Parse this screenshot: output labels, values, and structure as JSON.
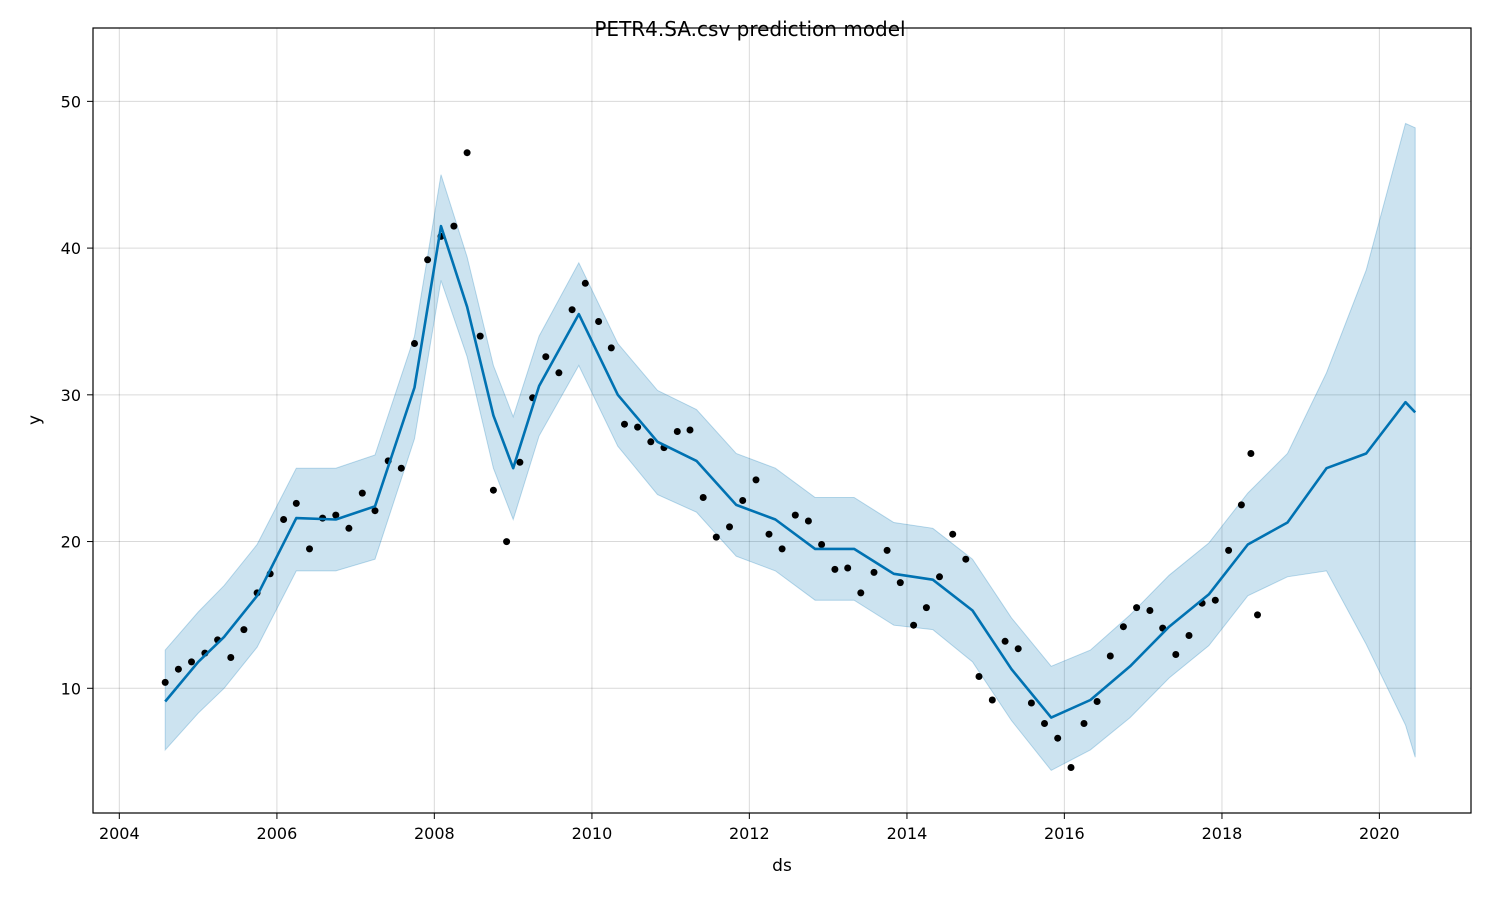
{
  "chart_data": {
    "type": "scatter",
    "title": "PETR4.SA.csv prediction model",
    "xlabel": "ds",
    "ylabel": "y",
    "x_axis_type": "date",
    "xlim": [
      "2003-09-01",
      "2021-03-01"
    ],
    "ylim": [
      1.5,
      55
    ],
    "x_ticks": [
      "2004",
      "2006",
      "2008",
      "2010",
      "2012",
      "2014",
      "2016",
      "2018",
      "2020"
    ],
    "y_ticks": [
      10,
      20,
      30,
      40,
      50
    ],
    "grid": true,
    "legend": "none",
    "colors": {
      "observed": "#000000",
      "forecast_line": "#0072B2",
      "uncertainty_band": "#0072B2"
    },
    "series": [
      {
        "kind": "observed",
        "points": [
          [
            "2004-08-01",
            10.4
          ],
          [
            "2004-10-01",
            11.3
          ],
          [
            "2004-12-01",
            11.8
          ],
          [
            "2005-02-01",
            12.4
          ],
          [
            "2005-04-01",
            13.3
          ],
          [
            "2005-06-01",
            12.1
          ],
          [
            "2005-08-01",
            14.0
          ],
          [
            "2005-10-01",
            16.5
          ],
          [
            "2005-12-01",
            17.8
          ],
          [
            "2006-02-01",
            21.5
          ],
          [
            "2006-04-01",
            22.6
          ],
          [
            "2006-06-01",
            19.5
          ],
          [
            "2006-08-01",
            21.6
          ],
          [
            "2006-10-01",
            21.8
          ],
          [
            "2006-12-01",
            20.9
          ],
          [
            "2007-02-01",
            23.3
          ],
          [
            "2007-04-01",
            22.1
          ],
          [
            "2007-06-01",
            25.5
          ],
          [
            "2007-08-01",
            25.0
          ],
          [
            "2007-10-01",
            33.5
          ],
          [
            "2007-12-01",
            39.2
          ],
          [
            "2008-02-01",
            40.8
          ],
          [
            "2008-04-01",
            41.5
          ],
          [
            "2008-06-01",
            46.5
          ],
          [
            "2008-08-01",
            34.0
          ],
          [
            "2008-10-01",
            23.5
          ],
          [
            "2008-12-01",
            20.0
          ],
          [
            "2009-02-01",
            25.4
          ],
          [
            "2009-04-01",
            29.8
          ],
          [
            "2009-06-01",
            32.6
          ],
          [
            "2009-08-01",
            31.5
          ],
          [
            "2009-10-01",
            35.8
          ],
          [
            "2009-12-01",
            37.6
          ],
          [
            "2010-02-01",
            35.0
          ],
          [
            "2010-04-01",
            33.2
          ],
          [
            "2010-06-01",
            28.0
          ],
          [
            "2010-08-01",
            27.8
          ],
          [
            "2010-10-01",
            26.8
          ],
          [
            "2010-12-01",
            26.4
          ],
          [
            "2011-02-01",
            27.5
          ],
          [
            "2011-04-01",
            27.6
          ],
          [
            "2011-06-01",
            23.0
          ],
          [
            "2011-08-01",
            20.3
          ],
          [
            "2011-10-01",
            21.0
          ],
          [
            "2011-12-01",
            22.8
          ],
          [
            "2012-02-01",
            24.2
          ],
          [
            "2012-04-01",
            20.5
          ],
          [
            "2012-06-01",
            19.5
          ],
          [
            "2012-08-01",
            21.8
          ],
          [
            "2012-10-01",
            21.4
          ],
          [
            "2012-12-01",
            19.8
          ],
          [
            "2013-02-01",
            18.1
          ],
          [
            "2013-04-01",
            18.2
          ],
          [
            "2013-06-01",
            16.5
          ],
          [
            "2013-08-01",
            17.9
          ],
          [
            "2013-10-01",
            19.4
          ],
          [
            "2013-12-01",
            17.2
          ],
          [
            "2014-02-01",
            14.3
          ],
          [
            "2014-04-01",
            15.5
          ],
          [
            "2014-06-01",
            17.6
          ],
          [
            "2014-08-01",
            20.5
          ],
          [
            "2014-10-01",
            18.8
          ],
          [
            "2014-12-01",
            10.8
          ],
          [
            "2015-02-01",
            9.2
          ],
          [
            "2015-04-01",
            13.2
          ],
          [
            "2015-06-01",
            12.7
          ],
          [
            "2015-08-01",
            9.0
          ],
          [
            "2015-10-01",
            7.6
          ],
          [
            "2015-12-01",
            6.6
          ],
          [
            "2016-02-01",
            4.6
          ],
          [
            "2016-04-01",
            7.6
          ],
          [
            "2016-06-01",
            9.1
          ],
          [
            "2016-08-01",
            12.2
          ],
          [
            "2016-10-01",
            14.2
          ],
          [
            "2016-12-01",
            15.5
          ],
          [
            "2017-02-01",
            15.3
          ],
          [
            "2017-04-01",
            14.1
          ],
          [
            "2017-06-01",
            12.3
          ],
          [
            "2017-08-01",
            13.6
          ],
          [
            "2017-10-01",
            15.8
          ],
          [
            "2017-12-01",
            16.0
          ],
          [
            "2018-02-01",
            19.4
          ],
          [
            "2018-04-01",
            22.5
          ],
          [
            "2018-05-15",
            26.0
          ],
          [
            "2018-06-15",
            15.0
          ]
        ]
      },
      {
        "kind": "forecast",
        "points": [
          [
            "2004-08-01",
            9.1
          ],
          [
            "2005-01-01",
            11.8
          ],
          [
            "2005-05-01",
            13.5
          ],
          [
            "2005-10-01",
            16.3
          ],
          [
            "2006-04-01",
            21.6
          ],
          [
            "2006-10-01",
            21.5
          ],
          [
            "2007-04-01",
            22.4
          ],
          [
            "2007-10-01",
            30.5
          ],
          [
            "2008-02-01",
            41.5
          ],
          [
            "2008-06-01",
            36.0
          ],
          [
            "2008-10-01",
            28.6
          ],
          [
            "2009-01-01",
            25.0
          ],
          [
            "2009-05-01",
            30.6
          ],
          [
            "2009-11-01",
            35.5
          ],
          [
            "2010-05-01",
            30.0
          ],
          [
            "2010-11-01",
            26.8
          ],
          [
            "2011-05-01",
            25.5
          ],
          [
            "2011-11-01",
            22.5
          ],
          [
            "2012-05-01",
            21.5
          ],
          [
            "2012-11-01",
            19.5
          ],
          [
            "2013-05-01",
            19.5
          ],
          [
            "2013-11-01",
            17.8
          ],
          [
            "2014-05-01",
            17.4
          ],
          [
            "2014-11-01",
            15.3
          ],
          [
            "2015-05-01",
            11.3
          ],
          [
            "2015-11-01",
            8.0
          ],
          [
            "2016-05-01",
            9.2
          ],
          [
            "2016-11-01",
            11.5
          ],
          [
            "2017-05-01",
            14.2
          ],
          [
            "2017-11-01",
            16.4
          ],
          [
            "2018-05-01",
            19.8
          ],
          [
            "2018-11-01",
            21.3
          ],
          [
            "2019-05-01",
            25.0
          ],
          [
            "2019-11-01",
            26.0
          ],
          [
            "2020-05-01",
            29.5
          ],
          [
            "2020-06-15",
            28.8
          ]
        ],
        "lower": [
          [
            "2004-08-01",
            5.8
          ],
          [
            "2005-01-01",
            8.3
          ],
          [
            "2005-05-01",
            10.0
          ],
          [
            "2005-10-01",
            12.8
          ],
          [
            "2006-04-01",
            18.0
          ],
          [
            "2006-10-01",
            18.0
          ],
          [
            "2007-04-01",
            18.8
          ],
          [
            "2007-10-01",
            27.0
          ],
          [
            "2008-02-01",
            37.8
          ],
          [
            "2008-06-01",
            32.6
          ],
          [
            "2008-10-01",
            25.0
          ],
          [
            "2009-01-01",
            21.5
          ],
          [
            "2009-05-01",
            27.2
          ],
          [
            "2009-11-01",
            32.0
          ],
          [
            "2010-05-01",
            26.5
          ],
          [
            "2010-11-01",
            23.2
          ],
          [
            "2011-05-01",
            22.0
          ],
          [
            "2011-11-01",
            19.0
          ],
          [
            "2012-05-01",
            18.0
          ],
          [
            "2012-11-01",
            16.0
          ],
          [
            "2013-05-01",
            16.0
          ],
          [
            "2013-11-01",
            14.3
          ],
          [
            "2014-05-01",
            14.0
          ],
          [
            "2014-11-01",
            11.8
          ],
          [
            "2015-05-01",
            7.8
          ],
          [
            "2015-11-01",
            4.4
          ],
          [
            "2016-05-01",
            5.8
          ],
          [
            "2016-11-01",
            8.0
          ],
          [
            "2017-05-01",
            10.7
          ],
          [
            "2017-11-01",
            12.9
          ],
          [
            "2018-05-01",
            16.3
          ],
          [
            "2018-11-01",
            17.6
          ],
          [
            "2019-05-01",
            18.0
          ],
          [
            "2019-11-01",
            13.0
          ],
          [
            "2020-05-01",
            7.5
          ],
          [
            "2020-06-15",
            5.3
          ]
        ],
        "upper": [
          [
            "2004-08-01",
            12.6
          ],
          [
            "2005-01-01",
            15.2
          ],
          [
            "2005-05-01",
            17.0
          ],
          [
            "2005-10-01",
            19.8
          ],
          [
            "2006-04-01",
            25.0
          ],
          [
            "2006-10-01",
            25.0
          ],
          [
            "2007-04-01",
            25.9
          ],
          [
            "2007-10-01",
            34.0
          ],
          [
            "2008-02-01",
            45.0
          ],
          [
            "2008-06-01",
            39.4
          ],
          [
            "2008-10-01",
            32.0
          ],
          [
            "2009-01-01",
            28.5
          ],
          [
            "2009-05-01",
            34.0
          ],
          [
            "2009-11-01",
            39.0
          ],
          [
            "2010-05-01",
            33.5
          ],
          [
            "2010-11-01",
            30.3
          ],
          [
            "2011-05-01",
            29.0
          ],
          [
            "2011-11-01",
            26.0
          ],
          [
            "2012-05-01",
            25.0
          ],
          [
            "2012-11-01",
            23.0
          ],
          [
            "2013-05-01",
            23.0
          ],
          [
            "2013-11-01",
            21.3
          ],
          [
            "2014-05-01",
            20.9
          ],
          [
            "2014-11-01",
            18.8
          ],
          [
            "2015-05-01",
            14.8
          ],
          [
            "2015-11-01",
            11.5
          ],
          [
            "2016-05-01",
            12.6
          ],
          [
            "2016-11-01",
            15.0
          ],
          [
            "2017-05-01",
            17.7
          ],
          [
            "2017-11-01",
            19.9
          ],
          [
            "2018-05-01",
            23.3
          ],
          [
            "2018-11-01",
            26.0
          ],
          [
            "2019-05-01",
            31.5
          ],
          [
            "2019-11-01",
            38.5
          ],
          [
            "2020-05-01",
            48.5
          ],
          [
            "2020-06-15",
            48.2
          ]
        ]
      }
    ]
  }
}
